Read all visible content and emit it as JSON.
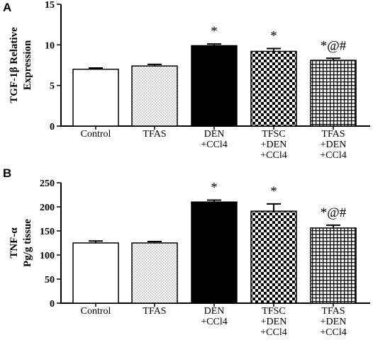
{
  "chart_data": [
    {
      "panel": "A",
      "type": "bar",
      "categories": [
        [
          "Control"
        ],
        [
          "TFAS"
        ],
        [
          "DEN",
          "+CCl4"
        ],
        [
          "TFSC",
          "+DEN",
          "+CCl4"
        ],
        [
          "TFAS",
          "+DEN",
          "+CCl4"
        ]
      ],
      "values": [
        7.0,
        7.4,
        9.9,
        9.2,
        8.1
      ],
      "errors": [
        0.15,
        0.2,
        0.2,
        0.35,
        0.25
      ],
      "fills": [
        "white",
        "dots",
        "black",
        "checker",
        "grid"
      ],
      "annotations": [
        "",
        "",
        "*",
        "*",
        "*@#"
      ],
      "ylabel": [
        "TGF-1β Relative",
        "Expression"
      ],
      "ylim": [
        0,
        15
      ],
      "yticks": [
        0,
        5,
        10,
        15
      ]
    },
    {
      "panel": "B",
      "type": "bar",
      "categories": [
        [
          "Control"
        ],
        [
          "TFAS"
        ],
        [
          "DEN",
          "+CCl4"
        ],
        [
          "TFSC",
          "+DEN",
          "+CCl4"
        ],
        [
          "TFAS",
          "+DEN",
          "+CCl4"
        ]
      ],
      "values": [
        125,
        125,
        210,
        191,
        156
      ],
      "errors": [
        4,
        3,
        4,
        15,
        6
      ],
      "fills": [
        "white",
        "dots",
        "black",
        "checker",
        "grid"
      ],
      "annotations": [
        "",
        "",
        "*",
        "*",
        "*@#"
      ],
      "ylabel": [
        "TNF-α",
        "Pg/g tissue"
      ],
      "ylim": [
        0,
        250
      ],
      "yticks": [
        0,
        50,
        100,
        150,
        200,
        250
      ]
    }
  ]
}
